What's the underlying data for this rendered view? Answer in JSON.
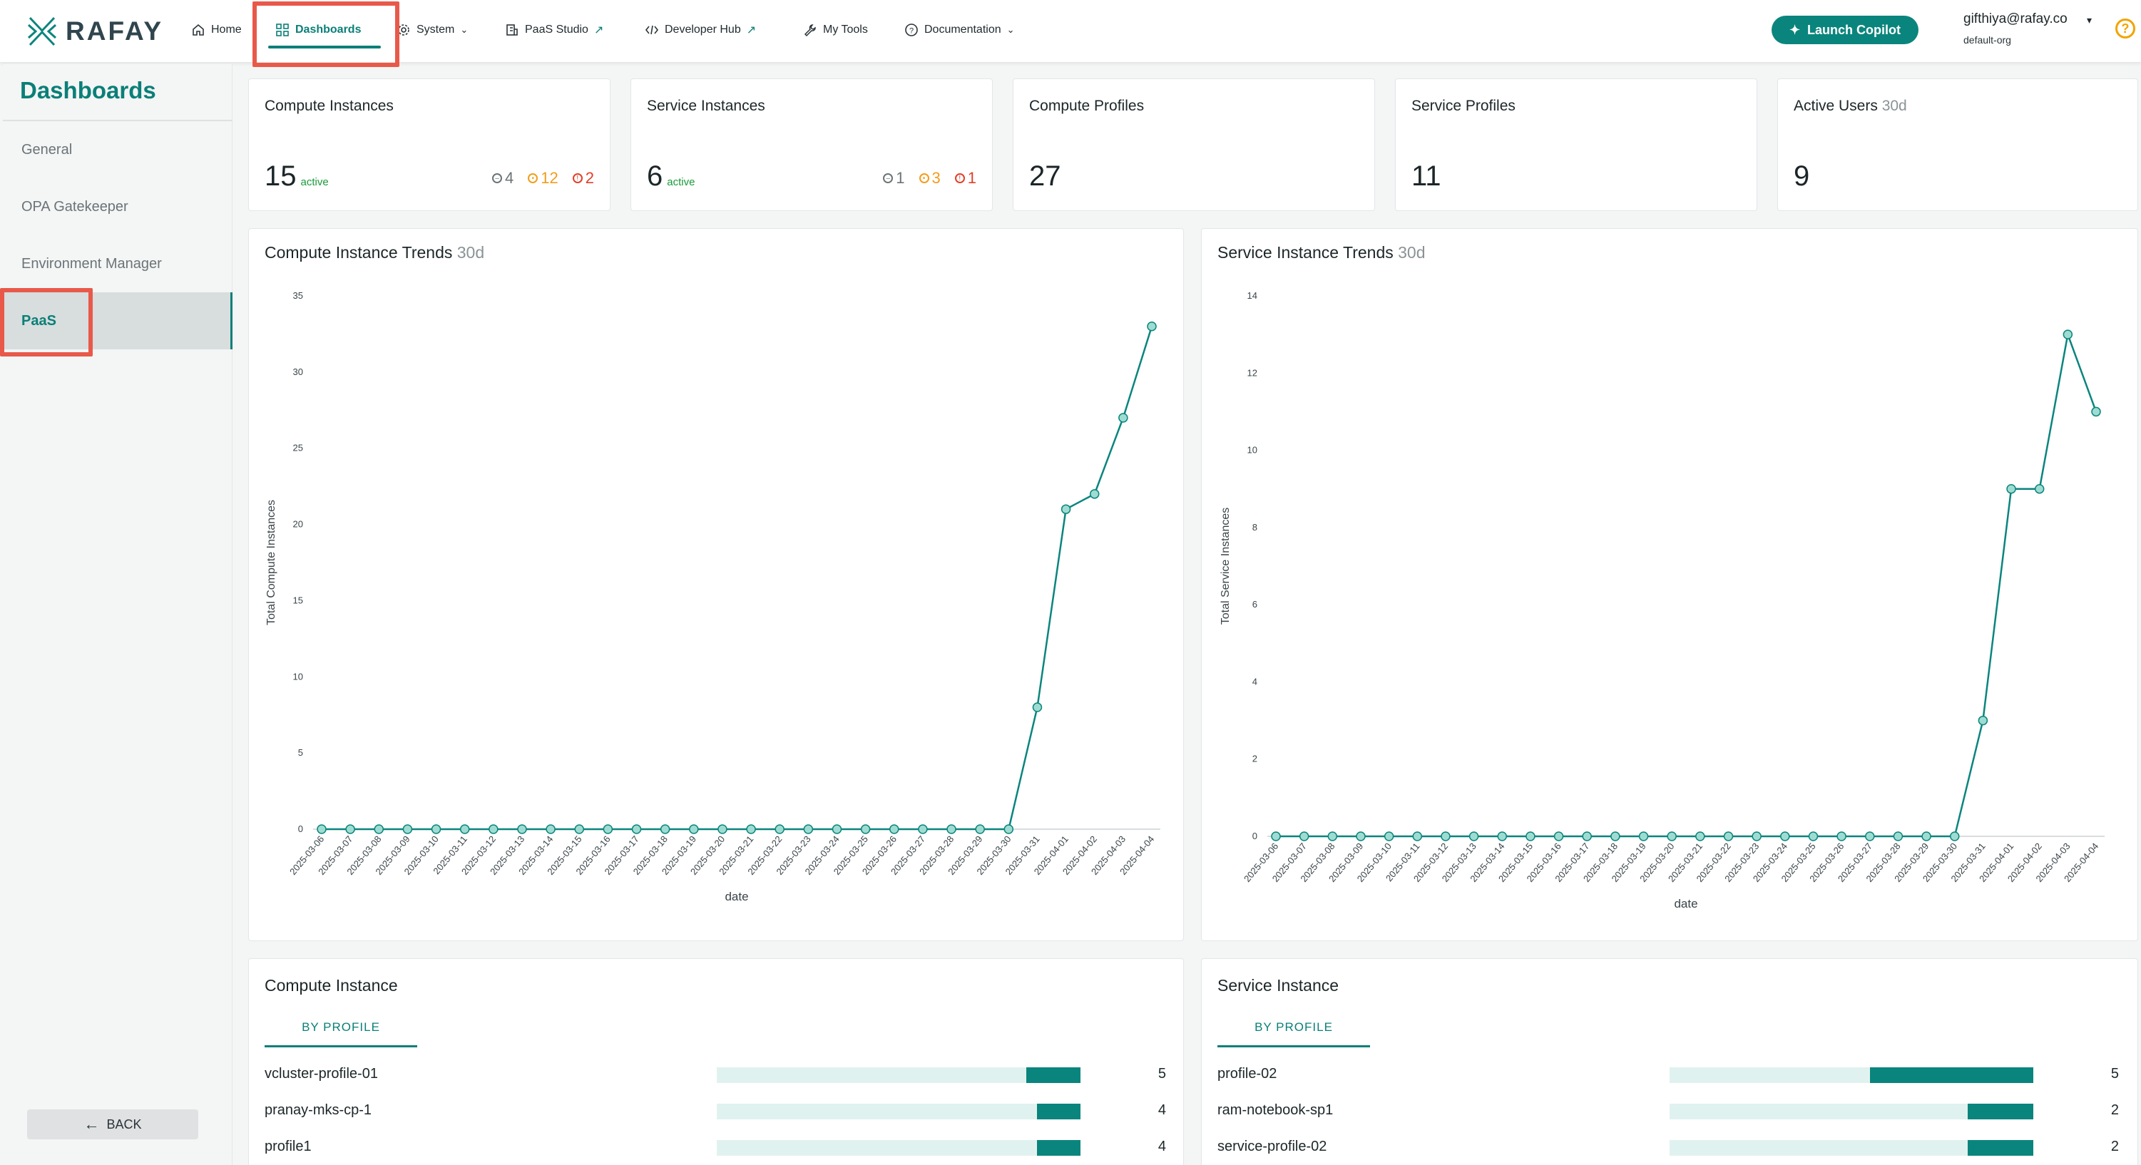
{
  "app": {
    "logo_text": "RAFAY"
  },
  "nav": {
    "items": [
      {
        "label": "Home",
        "icon": "home-icon"
      },
      {
        "label": "Dashboards",
        "icon": "dashboard-grid-icon",
        "active": true
      },
      {
        "label": "System",
        "icon": "gear-icon",
        "dropdown": true
      },
      {
        "label": "PaaS Studio",
        "icon": "studio-icon",
        "external": true
      },
      {
        "label": "Developer Hub",
        "icon": "code-icon",
        "external": true
      },
      {
        "label": "My Tools",
        "icon": "wrench-icon"
      },
      {
        "label": "Documentation",
        "icon": "question-circle-icon",
        "dropdown": true
      }
    ],
    "copilot_label": "Launch Copilot"
  },
  "user": {
    "email": "gifthiya@rafay.co",
    "org": "default-org",
    "help": "?"
  },
  "sidebar": {
    "title": "Dashboards",
    "items": [
      {
        "label": "General"
      },
      {
        "label": "OPA Gatekeeper"
      },
      {
        "label": "Environment Manager"
      },
      {
        "label": "PaaS",
        "active": true
      }
    ],
    "back_label": "BACK"
  },
  "stats": [
    {
      "title": "Compute Instances",
      "value": "15",
      "active_label": "active",
      "counts": {
        "grey": "4",
        "orange": "12",
        "red": "2"
      }
    },
    {
      "title": "Service Instances",
      "value": "6",
      "active_label": "active",
      "counts": {
        "grey": "1",
        "orange": "3",
        "red": "1"
      }
    },
    {
      "title": "Compute Profiles",
      "value": "27"
    },
    {
      "title": "Service Profiles",
      "value": "11"
    },
    {
      "title": "Active Users",
      "subtitle": "30d",
      "value": "9"
    }
  ],
  "charts_meta": {
    "compute_title": "Compute Instance Trends",
    "service_title": "Service Instance Trends",
    "period": "30d"
  },
  "chart_data": [
    {
      "type": "line",
      "title": "Compute Instance Trends",
      "xlabel": "date",
      "ylabel": "Total Compute Instances",
      "ylim": [
        0,
        35
      ],
      "yticks": [
        0,
        5,
        10,
        15,
        20,
        25,
        30,
        35
      ],
      "color": "#0a857d",
      "x": [
        "2025-03-06",
        "2025-03-07",
        "2025-03-08",
        "2025-03-09",
        "2025-03-10",
        "2025-03-11",
        "2025-03-12",
        "2025-03-13",
        "2025-03-14",
        "2025-03-15",
        "2025-03-16",
        "2025-03-17",
        "2025-03-18",
        "2025-03-19",
        "2025-03-20",
        "2025-03-21",
        "2025-03-22",
        "2025-03-23",
        "2025-03-24",
        "2025-03-25",
        "2025-03-26",
        "2025-03-27",
        "2025-03-28",
        "2025-03-29",
        "2025-03-30",
        "2025-03-31",
        "2025-04-01",
        "2025-04-02",
        "2025-04-03",
        "2025-04-04"
      ],
      "values": [
        0,
        0,
        0,
        0,
        0,
        0,
        0,
        0,
        0,
        0,
        0,
        0,
        0,
        0,
        0,
        0,
        0,
        0,
        0,
        0,
        0,
        0,
        0,
        0,
        0,
        8,
        21,
        22,
        27,
        33
      ]
    },
    {
      "type": "line",
      "title": "Service Instance Trends",
      "xlabel": "date",
      "ylabel": "Total Service Instances",
      "ylim": [
        0,
        14
      ],
      "yticks": [
        0,
        2,
        4,
        6,
        8,
        10,
        12,
        14
      ],
      "color": "#0a857d",
      "x": [
        "2025-03-06",
        "2025-03-07",
        "2025-03-08",
        "2025-03-09",
        "2025-03-10",
        "2025-03-11",
        "2025-03-12",
        "2025-03-13",
        "2025-03-14",
        "2025-03-15",
        "2025-03-16",
        "2025-03-17",
        "2025-03-18",
        "2025-03-19",
        "2025-03-20",
        "2025-03-21",
        "2025-03-22",
        "2025-03-23",
        "2025-03-24",
        "2025-03-25",
        "2025-03-26",
        "2025-03-27",
        "2025-03-28",
        "2025-03-29",
        "2025-03-30",
        "2025-03-31",
        "2025-04-01",
        "2025-04-02",
        "2025-04-03",
        "2025-04-04"
      ],
      "values": [
        0,
        0,
        0,
        0,
        0,
        0,
        0,
        0,
        0,
        0,
        0,
        0,
        0,
        0,
        0,
        0,
        0,
        0,
        0,
        0,
        0,
        0,
        0,
        0,
        0,
        3,
        9,
        9,
        13,
        11
      ]
    }
  ],
  "compute_panel": {
    "title": "Compute Instance",
    "tab": "BY PROFILE",
    "rows": [
      {
        "label": "vcluster-profile-01",
        "value": 5,
        "fraction": 0.15
      },
      {
        "label": "pranay-mks-cp-1",
        "value": 4,
        "fraction": 0.12
      },
      {
        "label": "profile1",
        "value": 4,
        "fraction": 0.12
      }
    ]
  },
  "service_panel": {
    "title": "Service Instance",
    "tab": "BY PROFILE",
    "rows": [
      {
        "label": "profile-02",
        "value": 5,
        "fraction": 0.45
      },
      {
        "label": "ram-notebook-sp1",
        "value": 2,
        "fraction": 0.18
      },
      {
        "label": "service-profile-02",
        "value": 2,
        "fraction": 0.18
      }
    ]
  }
}
